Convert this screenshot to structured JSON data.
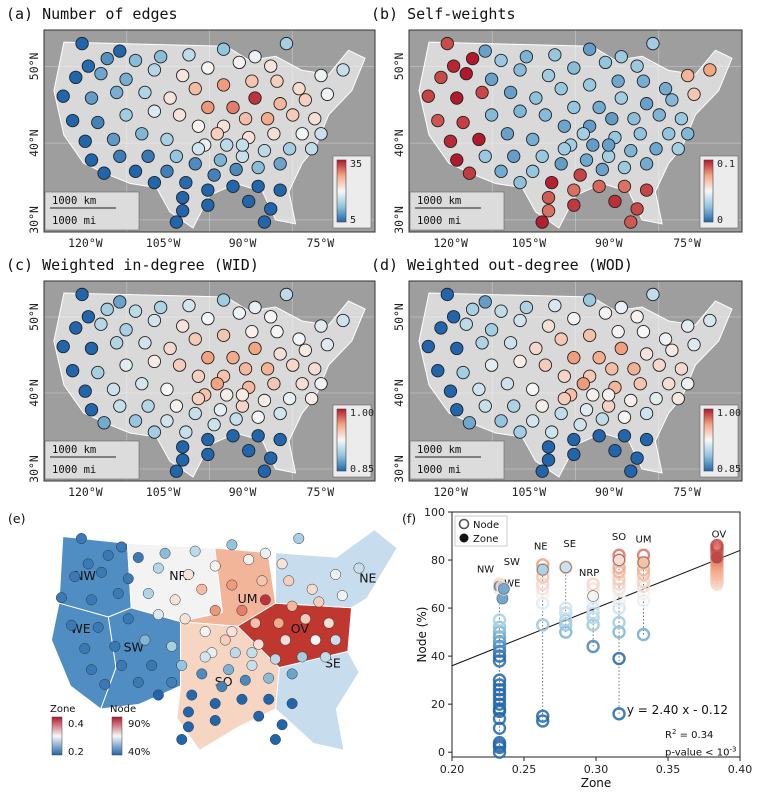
{
  "panels": [
    {
      "label": "(a) Number of edges",
      "cb_max": "35",
      "cb_min": "5",
      "scheme": "edges"
    },
    {
      "label": "(b) Self-weights",
      "cb_max": "0.1",
      "cb_min": "0",
      "scheme": "self"
    },
    {
      "label": "(c) Weighted in-degree (WID)",
      "cb_max": "1.00",
      "cb_min": "0.85",
      "scheme": "wid"
    },
    {
      "label": "(d) Weighted out-degree (WOD)",
      "cb_max": "1.00",
      "cb_min": "0.85",
      "scheme": "wod"
    }
  ],
  "scalebar": {
    "km": "1000 km",
    "mi": "1000 mi"
  },
  "lat_ticks": [
    "50°N",
    "40°N",
    "30°N"
  ],
  "lon_ticks": [
    "120°W",
    "105°W",
    "90°W",
    "75°W"
  ],
  "panel_e": {
    "label": "(e)",
    "zones": [
      "NW",
      "WE",
      "SW",
      "NRP",
      "SO",
      "UM",
      "OV",
      "SE",
      "NE"
    ],
    "zone_legend": {
      "title": "Zone",
      "max": "0.4",
      "min": "0.2"
    },
    "node_legend": {
      "title": "Node",
      "max": "90%",
      "min": "40%"
    }
  },
  "panel_f": {
    "label": "(f)",
    "legend": {
      "node": "Node",
      "zone": "Zone"
    },
    "equation": "y = 2.40 x - 0.12",
    "r2": "R",
    "r2_sup": "2",
    "r2_val": " = 0.34",
    "pval": "p-value < 10",
    "pval_sup": "-3",
    "xlabel": "Zone",
    "ylabel": "Node (%)",
    "xticks": [
      "0.20",
      "0.25",
      "0.30",
      "0.35",
      "0.40"
    ],
    "yticks": [
      "0",
      "20",
      "40",
      "60",
      "80",
      "100"
    ]
  },
  "chart_data": [
    {
      "type": "scatter",
      "title": "(a) Number of edges",
      "colorbar": {
        "min": 5,
        "max": 35
      },
      "xlabel": "",
      "ylabel": ""
    },
    {
      "type": "scatter",
      "title": "(b) Self-weights",
      "colorbar": {
        "min": 0,
        "max": 0.1
      },
      "xlabel": "",
      "ylabel": ""
    },
    {
      "type": "scatter",
      "title": "(c) Weighted in-degree (WID)",
      "colorbar": {
        "min": 0.85,
        "max": 1.0
      },
      "xlabel": "",
      "ylabel": ""
    },
    {
      "type": "scatter",
      "title": "(d) Weighted out-degree (WOD)",
      "colorbar": {
        "min": 0.85,
        "max": 1.0
      },
      "xlabel": "",
      "ylabel": ""
    },
    {
      "type": "scatter",
      "title": "(f)",
      "xlabel": "Zone",
      "ylabel": "Node (%)",
      "xlim": [
        0.2,
        0.4
      ],
      "ylim": [
        -2,
        100
      ],
      "zones": [
        {
          "name": "NW",
          "x": 0.233,
          "zone_y": 69,
          "nodes": [
            0,
            2,
            3,
            4,
            10,
            14,
            17,
            18,
            20,
            22,
            24,
            26,
            28,
            30,
            38,
            40,
            42,
            44,
            46,
            48,
            50,
            52,
            55,
            68,
            70
          ]
        },
        {
          "name": "WE",
          "x": 0.235,
          "zone_y": 64,
          "nodes": [
            64,
            66,
            69
          ]
        },
        {
          "name": "SW",
          "x": 0.236,
          "zone_y": 68,
          "nodes": [
            68
          ]
        },
        {
          "name": "NE",
          "x": 0.263,
          "zone_y": 76,
          "nodes": [
            13,
            15,
            53,
            62,
            66,
            68,
            70,
            73,
            76,
            78
          ]
        },
        {
          "name": "SE",
          "x": 0.279,
          "zone_y": 77,
          "nodes": [
            50,
            53,
            55,
            58,
            60,
            77
          ]
        },
        {
          "name": "NRP",
          "x": 0.298,
          "zone_y": 65,
          "nodes": [
            44,
            53,
            56,
            58,
            60,
            63,
            65,
            68,
            70
          ]
        },
        {
          "name": "SO",
          "x": 0.316,
          "zone_y": 80,
          "nodes": [
            16,
            39,
            50,
            54,
            60,
            63,
            65,
            68,
            70,
            72,
            75,
            77,
            80,
            82
          ]
        },
        {
          "name": "UM",
          "x": 0.333,
          "zone_y": 79,
          "nodes": [
            49,
            63,
            66,
            69,
            71,
            74,
            76,
            79,
            82
          ]
        },
        {
          "name": "OV",
          "x": 0.384,
          "zone_y": 81,
          "nodes": [
            70,
            71,
            72,
            73,
            74,
            75,
            76,
            77,
            78,
            79,
            80,
            81,
            82,
            83,
            84,
            85,
            86
          ]
        }
      ],
      "fit": {
        "slope": 2.4,
        "intercept": -0.12
      }
    }
  ]
}
